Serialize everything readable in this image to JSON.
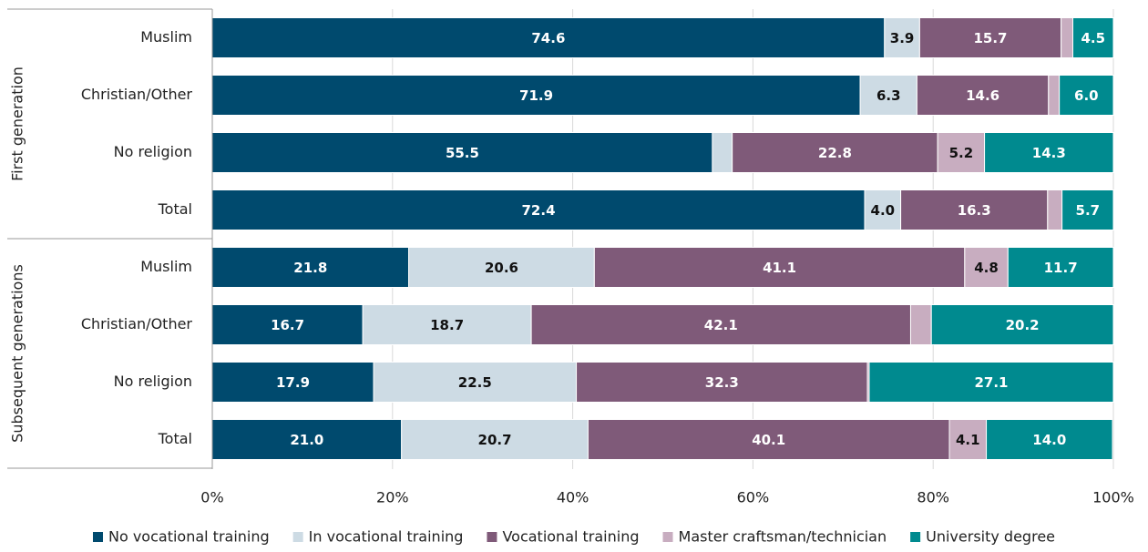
{
  "chart_data": {
    "type": "stacked_bar_horizontal",
    "groups": [
      {
        "name": "First generation",
        "categories": [
          "Muslim",
          "Christian/Other",
          "No religion",
          "Total"
        ]
      },
      {
        "name": "Subsequent generations",
        "categories": [
          "Muslim",
          "Christian/Other",
          "No religion",
          "Total"
        ]
      }
    ],
    "series": [
      {
        "name": "No vocational training",
        "color": "#004a6e",
        "label_color": "#ffffff",
        "values": [
          74.6,
          71.9,
          55.5,
          72.4,
          21.8,
          16.7,
          17.9,
          21.0
        ],
        "value_labels": [
          "74.6",
          "71.9",
          "55.5",
          "72.4",
          "21.8",
          "16.7",
          "17.9",
          "21.0"
        ]
      },
      {
        "name": "In vocational training",
        "color": "#cddbe4",
        "label_color": "#111111",
        "values": [
          3.9,
          6.3,
          2.2,
          4.0,
          20.6,
          18.7,
          22.5,
          20.7
        ],
        "value_labels": [
          "3.9",
          "6.3",
          null,
          "4.0",
          "20.6",
          "18.7",
          "22.5",
          "20.7"
        ]
      },
      {
        "name": "Vocational training",
        "color": "#7f5a79",
        "label_color": "#ffffff",
        "values": [
          15.7,
          14.6,
          22.8,
          16.3,
          41.1,
          42.1,
          32.3,
          40.1
        ],
        "value_labels": [
          "15.7",
          "14.6",
          "22.8",
          "16.3",
          "41.1",
          "42.1",
          "32.3",
          "40.1"
        ]
      },
      {
        "name": "Master craftsman/technician",
        "color": "#c8adc0",
        "label_color": "#111111",
        "values": [
          1.3,
          1.2,
          5.2,
          1.6,
          4.8,
          2.3,
          0.2,
          4.1
        ],
        "value_labels": [
          null,
          null,
          "5.2",
          null,
          "4.8",
          null,
          null,
          "4.1"
        ]
      },
      {
        "name": "University degree",
        "color": "#008a8f",
        "label_color": "#ffffff",
        "values": [
          4.5,
          6.0,
          14.3,
          5.7,
          11.7,
          20.2,
          27.1,
          14.0
        ],
        "value_labels": [
          "4.5",
          "6.0",
          "14.3",
          "5.7",
          "11.7",
          "20.2",
          "27.1",
          "14.0"
        ]
      }
    ],
    "xlim": [
      0,
      100
    ],
    "xticks": [
      {
        "value": 0,
        "label": "0%"
      },
      {
        "value": 20,
        "label": "20%"
      },
      {
        "value": 40,
        "label": "40%"
      },
      {
        "value": 60,
        "label": "60%"
      },
      {
        "value": 80,
        "label": "80%"
      },
      {
        "value": 100,
        "label": "100%"
      }
    ],
    "grid": true,
    "legend": "bottom"
  }
}
